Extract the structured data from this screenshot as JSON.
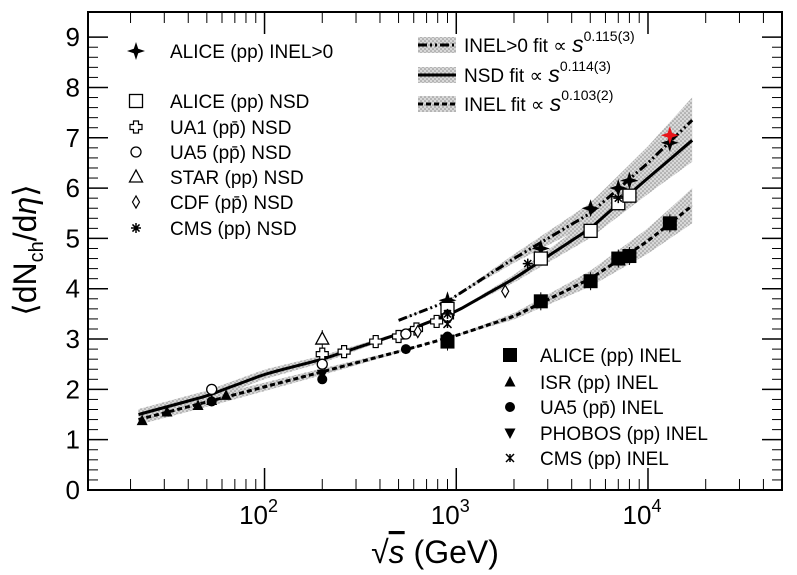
{
  "chart_data": {
    "type": "scatter",
    "xscale": "log",
    "xlim": [
      12,
      50000
    ],
    "ylim": [
      0,
      9.5
    ],
    "xlabel_parts": {
      "root": "√",
      "var": "s",
      "unit": " (GeV)"
    },
    "ylabel_parts": {
      "open": "⟨dN",
      "sub": "ch",
      "mid": "/d",
      "eta": "η",
      "close": "⟩"
    },
    "x_ticks": [
      {
        "value": 100,
        "base": "10",
        "exp": "2"
      },
      {
        "value": 1000,
        "base": "10",
        "exp": "3"
      },
      {
        "value": 10000,
        "base": "10",
        "exp": "4"
      }
    ],
    "y_ticks": [
      0,
      1,
      2,
      3,
      4,
      5,
      6,
      7,
      8,
      9
    ],
    "fits": [
      {
        "name": "INEL>0 fit",
        "label": "INEL>0 fit ∝ ",
        "s": "s",
        "exponent": "0.115(3)",
        "style": "dashdot",
        "points": [
          [
            500,
            3.37
          ],
          [
            900,
            3.75
          ],
          [
            2000,
            4.6
          ],
          [
            5000,
            5.5
          ],
          [
            10000,
            6.5
          ],
          [
            17000,
            7.35
          ]
        ]
      },
      {
        "name": "NSD fit",
        "label": "NSD fit ∝ ",
        "s": "s",
        "exponent": "0.114(3)",
        "style": "solid",
        "points": [
          [
            22,
            1.5
          ],
          [
            50,
            1.87
          ],
          [
            100,
            2.3
          ],
          [
            200,
            2.6
          ],
          [
            500,
            3.1
          ],
          [
            1000,
            3.55
          ],
          [
            2000,
            4.2
          ],
          [
            5000,
            5.2
          ],
          [
            10000,
            6.2
          ],
          [
            17000,
            6.95
          ]
        ]
      },
      {
        "name": "INEL fit",
        "label": "INEL fit ∝ ",
        "s": "s",
        "exponent": "0.103(2)",
        "style": "dashed",
        "points": [
          [
            22,
            1.4
          ],
          [
            50,
            1.75
          ],
          [
            100,
            2.05
          ],
          [
            200,
            2.35
          ],
          [
            500,
            2.75
          ],
          [
            1000,
            3.07
          ],
          [
            2000,
            3.45
          ],
          [
            5000,
            4.2
          ],
          [
            10000,
            4.95
          ],
          [
            17000,
            5.65
          ]
        ]
      }
    ],
    "series": [
      {
        "name": "ALICE (pp) INEL>0",
        "marker": "star",
        "points": [
          [
            900,
            3.77
          ],
          [
            2760,
            4.8
          ],
          [
            5020,
            5.6
          ],
          [
            7000,
            6.0
          ],
          [
            8000,
            6.15
          ],
          [
            13000,
            6.9
          ]
        ]
      },
      {
        "name": "ALICE (pp) NSD",
        "marker": "open-square",
        "points": [
          [
            900,
            3.6
          ],
          [
            2760,
            4.6
          ],
          [
            5020,
            5.15
          ],
          [
            7000,
            5.7
          ],
          [
            8000,
            5.85
          ]
        ]
      },
      {
        "name": "UA1 (pp̄) NSD",
        "marker": "open-cross",
        "points": [
          [
            200,
            2.7
          ],
          [
            260,
            2.75
          ],
          [
            380,
            2.95
          ],
          [
            500,
            3.05
          ],
          [
            620,
            3.2
          ],
          [
            790,
            3.35
          ],
          [
            900,
            3.45
          ]
        ]
      },
      {
        "name": "UA5 (pp̄) NSD",
        "marker": "open-circle",
        "points": [
          [
            53,
            2.0
          ],
          [
            200,
            2.5
          ],
          [
            546,
            3.1
          ],
          [
            900,
            3.45
          ]
        ]
      },
      {
        "name": "STAR (pp) NSD",
        "marker": "open-triangle",
        "points": [
          [
            200,
            3.0
          ]
        ]
      },
      {
        "name": "CDF (pp̄) NSD",
        "marker": "open-diamond",
        "points": [
          [
            630,
            3.15
          ],
          [
            1800,
            3.95
          ]
        ]
      },
      {
        "name": "CMS (pp) NSD",
        "marker": "asterisk",
        "points": [
          [
            900,
            3.5
          ],
          [
            2360,
            4.5
          ],
          [
            7000,
            5.8
          ]
        ]
      },
      {
        "name": "ALICE (pp) INEL",
        "marker": "filled-square",
        "points": [
          [
            900,
            2.95
          ],
          [
            2760,
            3.75
          ],
          [
            5020,
            4.15
          ],
          [
            7000,
            4.6
          ],
          [
            8000,
            4.65
          ],
          [
            13000,
            5.3
          ]
        ]
      },
      {
        "name": "ISR (pp) INEL",
        "marker": "filled-triangle",
        "points": [
          [
            23,
            1.38
          ],
          [
            31,
            1.55
          ],
          [
            45,
            1.68
          ],
          [
            53,
            1.78
          ],
          [
            63,
            1.88
          ]
        ]
      },
      {
        "name": "UA5 (pp̄) INEL",
        "marker": "filled-circle",
        "points": [
          [
            53,
            1.76
          ],
          [
            200,
            2.2
          ],
          [
            546,
            2.8
          ],
          [
            900,
            3.05
          ]
        ]
      },
      {
        "name": "PHOBOS (pp) INEL",
        "marker": "filled-triangle-down",
        "points": [
          [
            200,
            2.3
          ]
        ]
      },
      {
        "name": "CMS (pp) INEL",
        "marker": "small-x",
        "points": [
          [
            900,
            3.3
          ]
        ]
      },
      {
        "name": "ALICE (pp) INEL>0 13 TeV",
        "marker": "red-star",
        "points": [
          [
            13000,
            7.05
          ]
        ]
      }
    ],
    "legend_markers": [
      "star",
      "open-square",
      "open-cross",
      "open-circle",
      "open-triangle",
      "open-diamond",
      "asterisk"
    ],
    "legend_markers_right": [
      "filled-square",
      "filled-triangle",
      "filled-circle",
      "filled-triangle-down",
      "small-x"
    ],
    "colors": {
      "axis": "#000000",
      "band": "#b0b0b0",
      "highlight": "#e8141a"
    }
  }
}
